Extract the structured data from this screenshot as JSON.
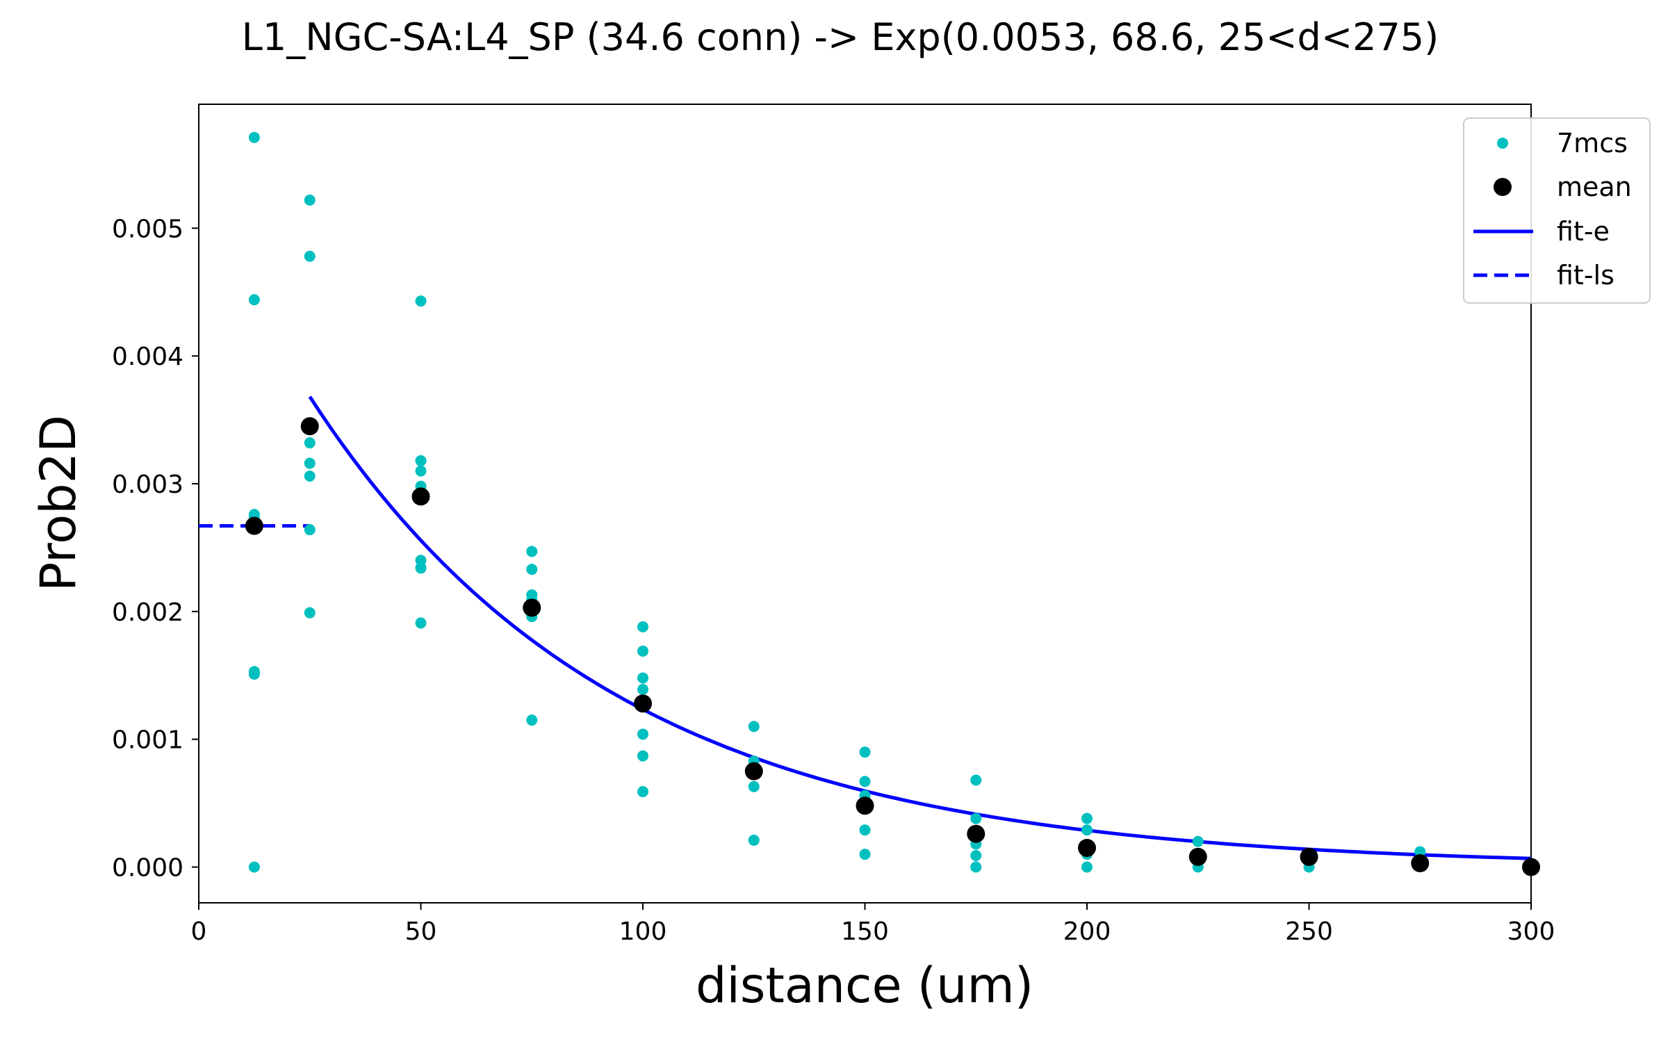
{
  "chart_data": {
    "type": "scatter",
    "title": "L1_NGC-SA:L4_SP (34.6 conn) -> Exp(0.0053, 68.6, 25<d<275)",
    "xlabel": "distance (um)",
    "ylabel": "Prob2D",
    "xlim": [
      0,
      300
    ],
    "ylim": [
      -0.00028,
      0.00597
    ],
    "xticks": [
      0,
      50,
      100,
      150,
      200,
      250,
      300
    ],
    "xtick_labels": [
      "0",
      "50",
      "100",
      "150",
      "200",
      "250",
      "300"
    ],
    "yticks": [
      0,
      0.001,
      0.002,
      0.003,
      0.004,
      0.005
    ],
    "ytick_labels": [
      "0.000",
      "0.001",
      "0.002",
      "0.003",
      "0.004",
      "0.005"
    ],
    "grid": false,
    "legend_position": "top-right",
    "series": [
      {
        "name": "7mcs",
        "kind": "scatter",
        "color": "#00bfbf",
        "points": [
          [
            12.5,
            0.00571
          ],
          [
            12.5,
            0.00444
          ],
          [
            12.5,
            0.00276
          ],
          [
            12.5,
            0.00274
          ],
          [
            12.5,
            0.00153
          ],
          [
            12.5,
            0.00151
          ],
          [
            12.5,
            0.0
          ],
          [
            25,
            0.00522
          ],
          [
            25,
            0.00478
          ],
          [
            25,
            0.00332
          ],
          [
            25,
            0.00316
          ],
          [
            25,
            0.00306
          ],
          [
            25,
            0.00264
          ],
          [
            25,
            0.00199
          ],
          [
            50,
            0.00443
          ],
          [
            50,
            0.00318
          ],
          [
            50,
            0.0031
          ],
          [
            50,
            0.00298
          ],
          [
            50,
            0.0024
          ],
          [
            50,
            0.00234
          ],
          [
            50,
            0.00191
          ],
          [
            75,
            0.00247
          ],
          [
            75,
            0.00233
          ],
          [
            75,
            0.00213
          ],
          [
            75,
            0.00209
          ],
          [
            75,
            0.00196
          ],
          [
            75,
            0.00115
          ],
          [
            100,
            0.00188
          ],
          [
            100,
            0.00169
          ],
          [
            100,
            0.00148
          ],
          [
            100,
            0.00139
          ],
          [
            100,
            0.00104
          ],
          [
            100,
            0.00087
          ],
          [
            100,
            0.00059
          ],
          [
            125,
            0.0011
          ],
          [
            125,
            0.00083
          ],
          [
            125,
            0.00075
          ],
          [
            125,
            0.00063
          ],
          [
            125,
            0.00021
          ],
          [
            150,
            0.0009
          ],
          [
            150,
            0.00067
          ],
          [
            150,
            0.00056
          ],
          [
            150,
            0.00029
          ],
          [
            150,
            0.0001
          ],
          [
            175,
            0.00068
          ],
          [
            175,
            0.00038
          ],
          [
            175,
            0.00018
          ],
          [
            175,
            9e-05
          ],
          [
            175,
            0.0
          ],
          [
            200,
            0.00038
          ],
          [
            200,
            0.00029
          ],
          [
            200,
            0.0001
          ],
          [
            200,
            0.0
          ],
          [
            225,
            0.0002
          ],
          [
            225,
            9e-05
          ],
          [
            225,
            0.0
          ],
          [
            250,
            9e-05
          ],
          [
            250,
            0.0
          ],
          [
            275,
            0.00012
          ],
          [
            275,
            5e-05
          ],
          [
            300,
            0.0
          ]
        ]
      },
      {
        "name": "mean",
        "kind": "scatter",
        "color": "#000000",
        "points": [
          [
            12.5,
            0.00267
          ],
          [
            25,
            0.00345
          ],
          [
            50,
            0.0029
          ],
          [
            75,
            0.00203
          ],
          [
            100,
            0.00128
          ],
          [
            125,
            0.00075
          ],
          [
            150,
            0.00048
          ],
          [
            175,
            0.00026
          ],
          [
            200,
            0.00015
          ],
          [
            225,
            8e-05
          ],
          [
            250,
            8e-05
          ],
          [
            275,
            3e-05
          ],
          [
            300,
            0.0
          ]
        ]
      },
      {
        "name": "fit-e",
        "kind": "line",
        "style": "solid",
        "color": "#0000ff",
        "function": "exp",
        "amplitude": 0.0053,
        "scale": 68.6,
        "x_range": [
          25,
          300
        ]
      },
      {
        "name": "fit-ls",
        "kind": "line",
        "style": "dashed",
        "color": "#0000ff",
        "points": [
          [
            0,
            0.00267
          ],
          [
            25,
            0.00267
          ]
        ]
      }
    ]
  }
}
